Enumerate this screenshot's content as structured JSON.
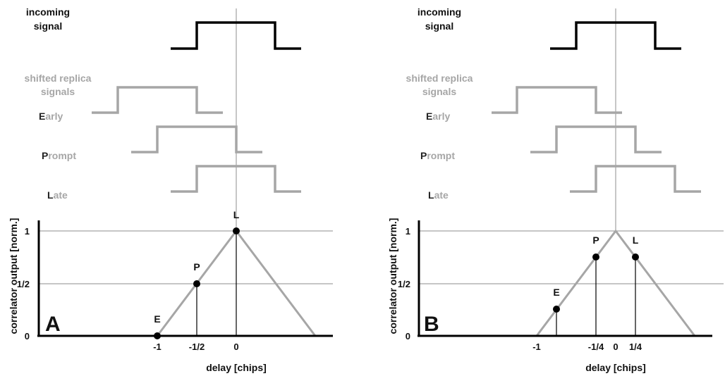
{
  "colors": {
    "incoming": "#000000",
    "replica": "#a6a6a6",
    "grid": "#8c8c8c",
    "axis": "#000000"
  },
  "panels": [
    {
      "letter": "A",
      "incoming_label": [
        "incoming",
        "signal"
      ],
      "shifted_label": [
        "shifted replica",
        "signals"
      ],
      "replicas": [
        {
          "initial": "E",
          "rest": "arly"
        },
        {
          "initial": "P",
          "rest": "rompt"
        },
        {
          "initial": "L",
          "rest": "ate"
        }
      ],
      "ylabel": "correlator output [norm.]",
      "xlabel": "delay [chips]",
      "y_ticks": [
        "1",
        "1/2",
        "0"
      ],
      "x_ticks": [
        "-1",
        "-1/2",
        "0"
      ],
      "points": [
        {
          "label": "E",
          "x": -1,
          "y": 0
        },
        {
          "label": "P",
          "x": -0.5,
          "y": 0.5
        },
        {
          "label": "L",
          "x": 0,
          "y": 1
        }
      ]
    },
    {
      "letter": "B",
      "incoming_label": [
        "incoming",
        "signal"
      ],
      "shifted_label": [
        "shifted replica",
        "signals"
      ],
      "replicas": [
        {
          "initial": "E",
          "rest": "arly"
        },
        {
          "initial": "P",
          "rest": "rompt"
        },
        {
          "initial": "L",
          "rest": "ate"
        }
      ],
      "ylabel": "correlator output [norm.]",
      "xlabel": "delay [chips]",
      "y_ticks": [
        "1",
        "1/2",
        "0"
      ],
      "x_ticks": [
        "-1",
        "-1/4",
        "0",
        "1/4"
      ],
      "points": [
        {
          "label": "E",
          "x": -0.75,
          "y": 0.25
        },
        {
          "label": "P",
          "x": -0.25,
          "y": 0.75
        },
        {
          "label": "L",
          "x": 0.25,
          "y": 0.75
        }
      ]
    }
  ]
}
